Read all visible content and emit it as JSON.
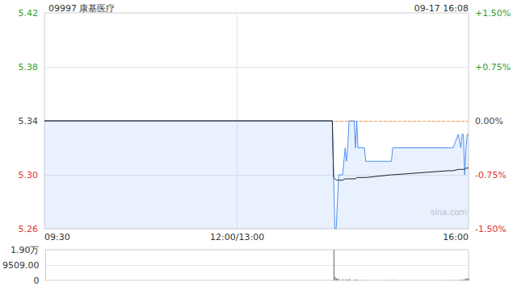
{
  "chart_data": [
    {
      "type": "line",
      "title": "09997 康基医疗",
      "subtitle": "09-17 16:08",
      "annotations": [
        "sina.com"
      ],
      "x": [
        0,
        224,
        225,
        226,
        227,
        228,
        229,
        232,
        234,
        235,
        236,
        237,
        241,
        242,
        243,
        244,
        249,
        250,
        270,
        271,
        314,
        318,
        322,
        324,
        325,
        326,
        327,
        328,
        329,
        330
      ],
      "xlim": [
        0,
        330
      ],
      "xticks": [
        {
          "value": 0,
          "label": "09:30"
        },
        {
          "value": 150,
          "label": "12:00/13:00"
        },
        {
          "value": 330,
          "label": "16:00"
        }
      ],
      "ylim": [
        5.26,
        5.42
      ],
      "yticks": [
        5.42,
        5.38,
        5.34,
        {
          "value": 5.3,
          "label": "5.30"
        },
        5.26
      ],
      "y2lim": [
        -1.5,
        1.5
      ],
      "y2ticks": [
        {
          "value": 1.5,
          "label": "+1.50%"
        },
        {
          "value": 0.75,
          "label": "+0.75%"
        },
        {
          "value": 0,
          "label": "0.00%"
        },
        {
          "value": -0.75,
          "label": "-0.75%"
        },
        {
          "value": -1.5,
          "label": "-1.50%"
        }
      ],
      "prev_close": 5.34,
      "grid": true,
      "series": [
        {
          "color": "#4d8ef5",
          "values": [
            5.34,
            5.34,
            5.3,
            5.26,
            5.26,
            5.28,
            5.3,
            5.3,
            5.32,
            5.31,
            5.32,
            5.34,
            5.34,
            5.32,
            5.34,
            5.32,
            5.32,
            5.31,
            5.31,
            5.32,
            5.32,
            5.32,
            5.33,
            5.32,
            5.33,
            5.33,
            5.3,
            5.32,
            5.33,
            5.33
          ]
        },
        {
          "color": "#222222",
          "values": [
            5.34,
            5.34,
            5.298,
            5.297,
            5.296,
            5.296,
            5.296,
            5.296,
            5.297,
            5.297,
            5.297,
            5.297,
            5.297,
            5.297,
            5.298,
            5.298,
            5.298,
            5.298,
            5.3,
            5.3,
            5.303,
            5.303,
            5.304,
            5.304,
            5.304,
            5.304,
            5.304,
            5.305,
            5.305,
            5.305
          ]
        }
      ]
    },
    {
      "type": "bar",
      "x": [
        0,
        224,
        225,
        226,
        227,
        228,
        229,
        232,
        234,
        235,
        236,
        237,
        241,
        242,
        243,
        244,
        249,
        250,
        270,
        271,
        314,
        318,
        322,
        324,
        325,
        326,
        327,
        328,
        329,
        330
      ],
      "xlim": [
        0,
        330
      ],
      "ylim": [
        0,
        19018
      ],
      "yticks": [
        0,
        {
          "value": 9509,
          "label": "9509.00"
        },
        {
          "value": 19018,
          "label": "1.90万"
        }
      ],
      "values": [
        0,
        0,
        19018,
        2200,
        1200,
        900,
        700,
        600,
        500,
        400,
        300,
        800,
        300,
        200,
        400,
        200,
        150,
        200,
        150,
        200,
        150,
        300,
        300,
        200,
        400,
        300,
        600,
        1200,
        900,
        1500
      ],
      "color": "#666666",
      "tick_labels": "y",
      "grid": true
    }
  ]
}
